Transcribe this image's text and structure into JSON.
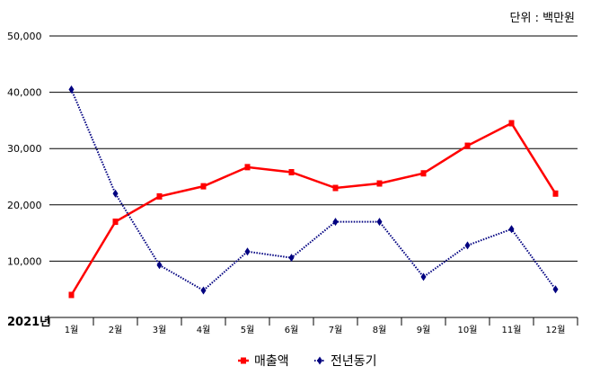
{
  "chart_data": {
    "type": "line",
    "unit_note": "단위 : 백만원",
    "x_axis_title": "2021년",
    "categories": [
      "1월",
      "2월",
      "3월",
      "4월",
      "5월",
      "6월",
      "7월",
      "8월",
      "9월",
      "10월",
      "11월",
      "12월"
    ],
    "ylim": [
      0,
      50000
    ],
    "yticks": [
      "50,000",
      "40,000",
      "30,000",
      "20,000",
      "10,000"
    ],
    "ytick_values": [
      50000,
      40000,
      30000,
      20000,
      10000
    ],
    "grid": true,
    "legend_position": "bottom",
    "series": [
      {
        "name": "매출액",
        "color": "#ff0000",
        "line_style": "solid",
        "marker": "square",
        "values": [
          4000,
          17000,
          21500,
          23300,
          26700,
          25800,
          23000,
          23800,
          25600,
          30500,
          34500,
          22000
        ]
      },
      {
        "name": "전년동기",
        "color": "#000080",
        "line_style": "dotted",
        "marker": "diamond",
        "values": [
          40500,
          22000,
          9300,
          4800,
          11700,
          10600,
          17000,
          17000,
          7200,
          12800,
          15700,
          5000
        ]
      }
    ]
  }
}
